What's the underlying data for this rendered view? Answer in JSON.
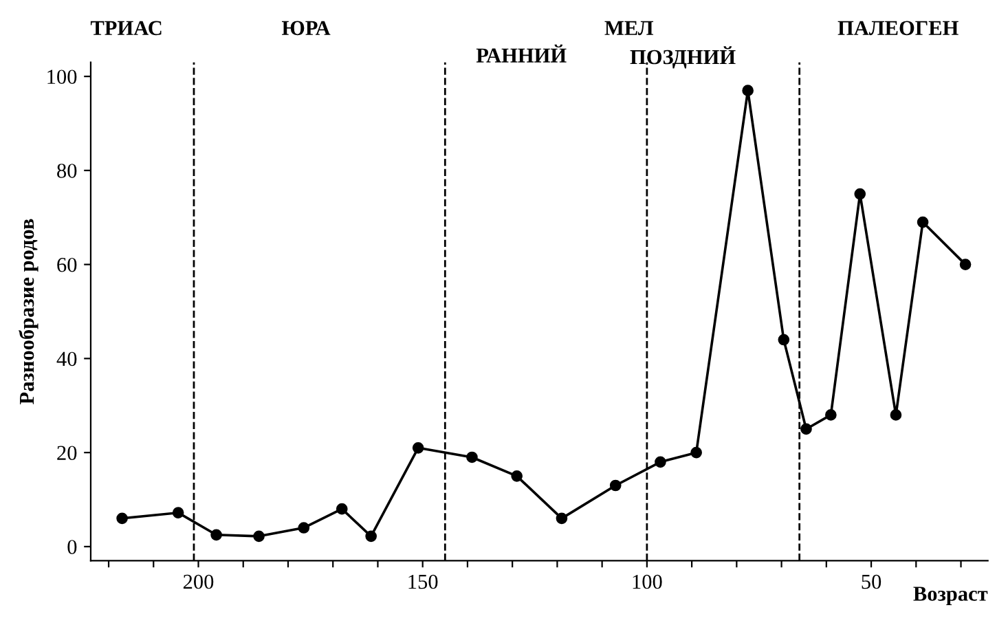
{
  "chart_data": {
    "type": "line",
    "xlabel": "Возраст",
    "ylabel": "Разнообразие родов",
    "x": [
      217,
      204.5,
      196,
      186.5,
      176.5,
      168,
      161.5,
      151,
      139,
      129,
      119,
      107,
      97,
      89,
      77.5,
      69.5,
      64.5,
      59,
      52.5,
      44.5,
      38.5,
      29
    ],
    "series": [
      {
        "color": "#000000",
        "values": [
          6,
          7.2,
          2.5,
          2.2,
          4,
          8,
          2.2,
          21,
          19,
          15,
          6,
          13,
          18,
          20,
          97,
          44,
          25,
          28,
          75,
          28,
          69,
          60
        ]
      }
    ],
    "marker": "circle",
    "line_style": "solid",
    "grid": false,
    "xlim": [
      224,
      24
    ],
    "ylim": [
      -3,
      103
    ],
    "xticks": [
      {
        "value": 220,
        "label": null
      },
      {
        "value": 210,
        "label": null
      },
      200,
      {
        "value": 190,
        "label": null
      },
      {
        "value": 180,
        "label": null
      },
      {
        "value": 170,
        "label": null
      },
      {
        "value": 160,
        "label": null
      },
      150,
      {
        "value": 140,
        "label": null
      },
      {
        "value": 130,
        "label": null
      },
      {
        "value": 120,
        "label": null
      },
      {
        "value": 110,
        "label": null
      },
      100,
      {
        "value": 90,
        "label": null
      },
      {
        "value": 80,
        "label": null
      },
      {
        "value": 70,
        "label": null
      },
      {
        "value": 60,
        "label": null
      },
      50,
      {
        "value": 40,
        "label": null
      },
      {
        "value": 30,
        "label": null
      }
    ],
    "yticks": [
      0,
      20,
      40,
      60,
      80,
      100
    ],
    "ref_lines": [
      {
        "axis": "x",
        "value": 201,
        "line_style": "dashed",
        "color": "#000000"
      },
      {
        "axis": "x",
        "value": 145,
        "line_style": "dashed",
        "color": "#000000"
      },
      {
        "axis": "x",
        "value": 100,
        "line_style": "dashed",
        "color": "#000000"
      },
      {
        "axis": "x",
        "value": 66,
        "line_style": "dashed",
        "color": "#000000"
      }
    ],
    "annotations": [
      "ТРИАС",
      "ЮРА",
      "МЕЛ",
      "РАННИЙ",
      "ПОЗДНИЙ",
      "ПАЛЕОГЕН"
    ]
  }
}
